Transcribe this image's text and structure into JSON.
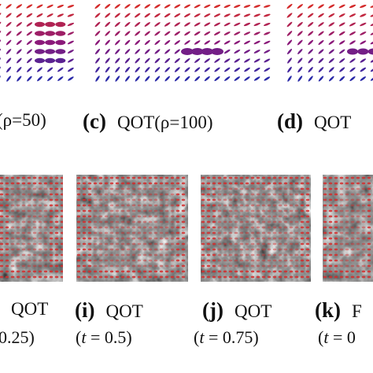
{
  "top_row": {
    "captions": [
      {
        "label": "",
        "text": "(ρ=50)"
      },
      {
        "label": "(c)",
        "text": "QOT(ρ=100)"
      },
      {
        "label": "(d)",
        "text": "QOT"
      }
    ]
  },
  "bottom_row": {
    "captions": [
      {
        "label": "",
        "text": "QOT",
        "param": "0.25)"
      },
      {
        "label": "(i)",
        "text": "QOT",
        "param_prefix": "(",
        "param_var": "t",
        "param_value": " = 0.5)"
      },
      {
        "label": "(j)",
        "text": "QOT",
        "param_prefix": "(",
        "param_var": "t",
        "param_value": " = 0.75)"
      },
      {
        "label": "(k)",
        "text": "F",
        "param_prefix": "(",
        "param_var": "t",
        "param_value": " = 0"
      }
    ]
  },
  "colors": {
    "tensor_red": "#d42b2b",
    "tensor_purple": "#8b1a7a",
    "tensor_blue": "#2a2aa8",
    "texture_dark": "#1a1a1a",
    "texture_light": "#e8e8e8"
  }
}
